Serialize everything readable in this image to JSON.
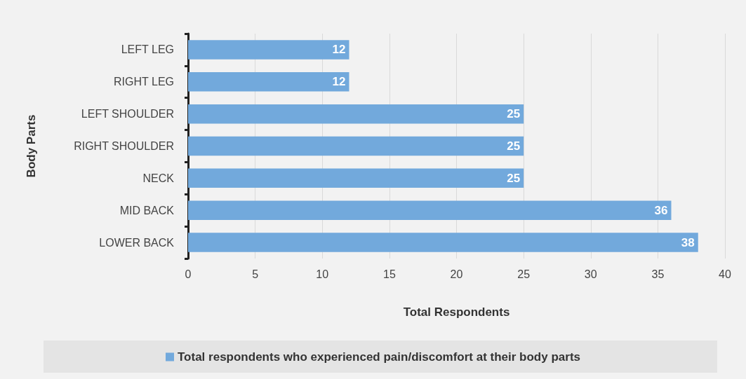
{
  "chart_data": {
    "type": "bar",
    "orientation": "horizontal",
    "xlabel": "Total Respondents",
    "ylabel": "Body Parts",
    "categories": [
      "LEFT LEG",
      "RIGHT LEG",
      "LEFT SHOULDER",
      "RIGHT SHOULDER",
      "NECK",
      "MID BACK",
      "LOWER BACK"
    ],
    "series": [
      {
        "name": "Total respondents who experienced pain/discomfort at their body parts",
        "color": "#72a9dc",
        "values": [
          12,
          12,
          25,
          25,
          25,
          36,
          38
        ]
      }
    ],
    "xlim": [
      0,
      40
    ],
    "xticks": [
      0,
      5,
      10,
      15,
      20,
      25,
      30,
      35,
      40
    ],
    "grid": "x",
    "legend": "bottom",
    "data_labels": true
  }
}
